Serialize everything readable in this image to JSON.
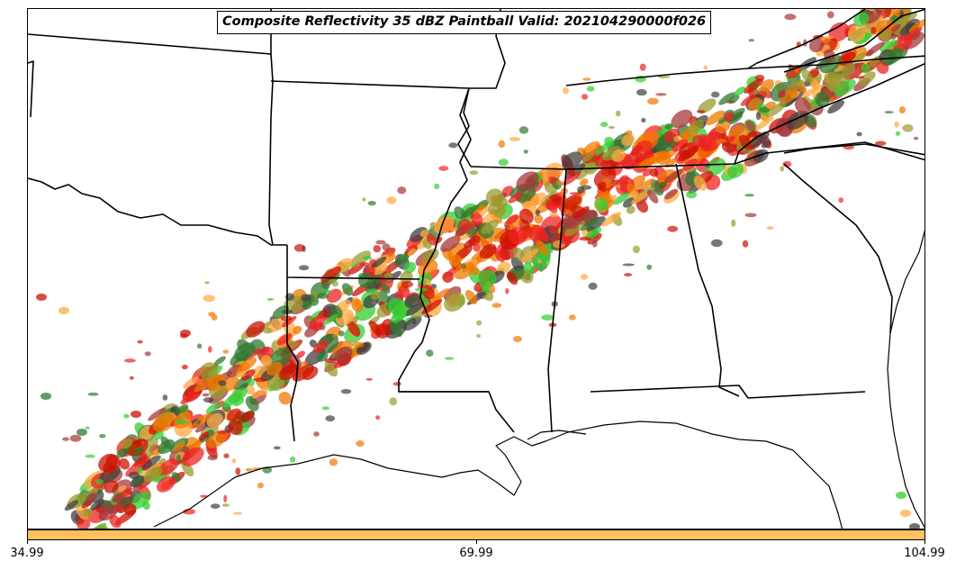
{
  "title": "Composite Reflectivity 35 dBZ Paintball Valid: 202104290000f026",
  "colorbar": {
    "color": "#ffc060",
    "ticks": [
      "34.99",
      "69.99",
      "104.99"
    ]
  },
  "paintball_colors": [
    "#cc1100",
    "#ee2222",
    "#f07800",
    "#ffa840",
    "#a53838",
    "#2f7a2f",
    "#33cc33",
    "#9a9a30",
    "#404040"
  ]
}
